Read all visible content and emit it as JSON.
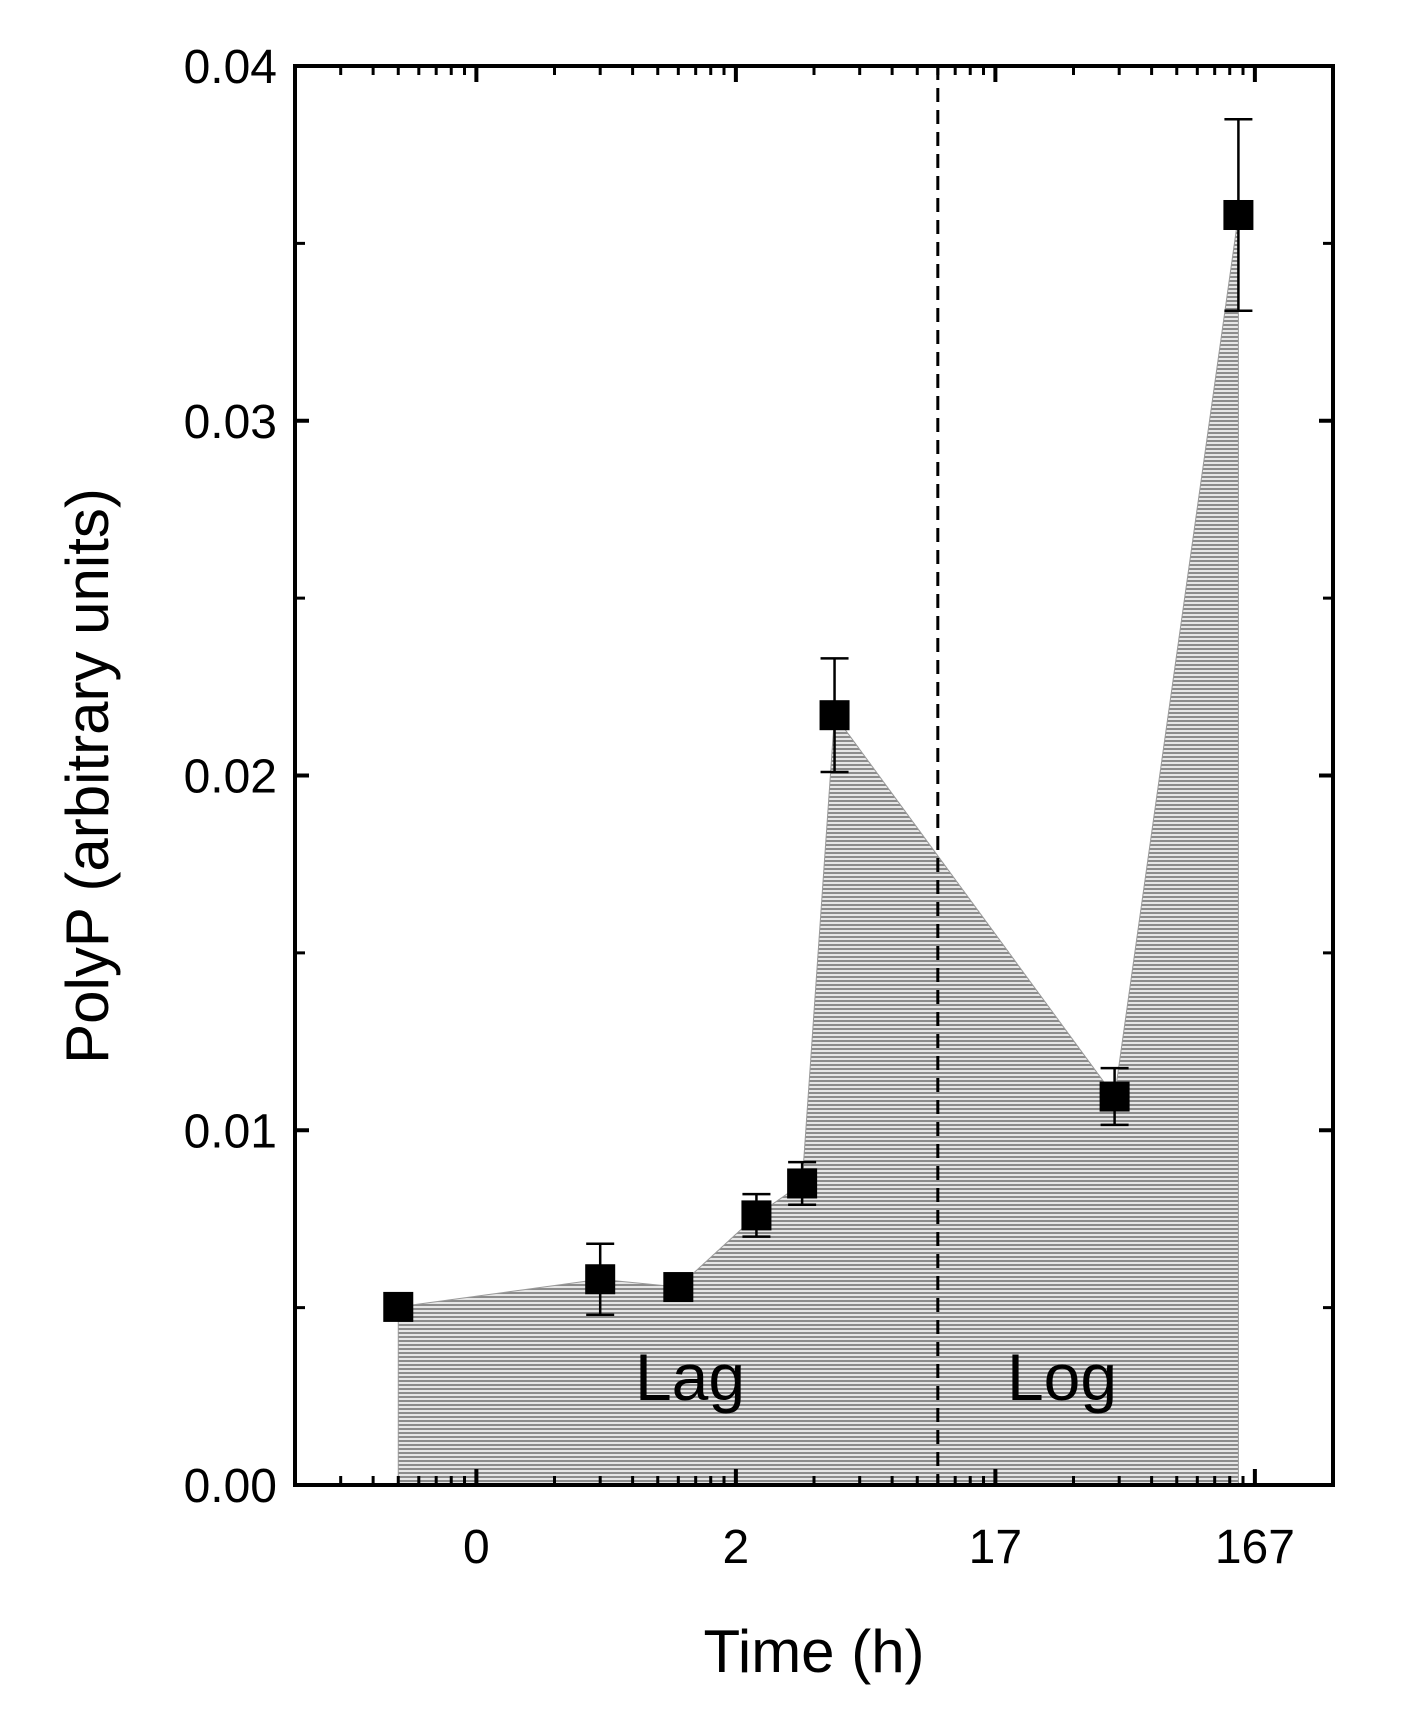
{
  "chart_data": {
    "type": "area",
    "x_axis_label": "Time (h)",
    "y_axis_label": "PolyP (arbitrary units)",
    "x_scale": "log",
    "xlim": [
      2,
      20000
    ],
    "xticks": [
      {
        "value": 10,
        "label": "0"
      },
      {
        "value": 100,
        "label": "2"
      },
      {
        "value": 1000,
        "label": "17"
      },
      {
        "value": 10000,
        "label": "167"
      }
    ],
    "ylim": [
      0,
      0.04
    ],
    "yticks": [
      {
        "value": 0,
        "label": "0.00"
      },
      0.01,
      0.02,
      0.03,
      0.04
    ],
    "x": [
      5,
      30,
      60,
      120,
      180,
      240,
      2880,
      8640
    ],
    "series": [
      {
        "color": "#000000",
        "fill": "#9a9a9a",
        "values": [
          0.00502,
          0.0058,
          0.00558,
          0.0076,
          0.0085,
          0.0217,
          0.01095,
          0.0358
        ],
        "errors": [
          0.0001,
          0.001,
          0.0002,
          0.0006,
          0.0006,
          0.0016,
          0.0008,
          0.0027
        ]
      }
    ],
    "divider_x": 600,
    "annotations": [
      {
        "text": "Lag"
      },
      {
        "text": "Log"
      }
    ]
  }
}
